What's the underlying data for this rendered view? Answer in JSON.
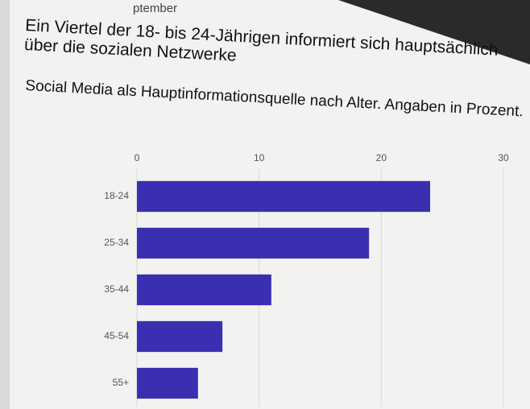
{
  "header_fragment": "ptember",
  "chart_data": {
    "type": "hbar",
    "title": "Ein Viertel der 18- bis 24-Jährigen informiert sich hauptsächlich über die sozialen Netzwerke",
    "subtitle": "Social Media als Hauptinformationsquelle nach Alter. Angaben in Prozent.",
    "categories": [
      "18-24",
      "25-34",
      "35-44",
      "45-54",
      "55+"
    ],
    "values": [
      24,
      19,
      11,
      7,
      5
    ],
    "color": "#3a2fb0",
    "xlim": [
      0,
      30
    ],
    "xticks": [
      0,
      10,
      20,
      30
    ],
    "grid": true
  }
}
